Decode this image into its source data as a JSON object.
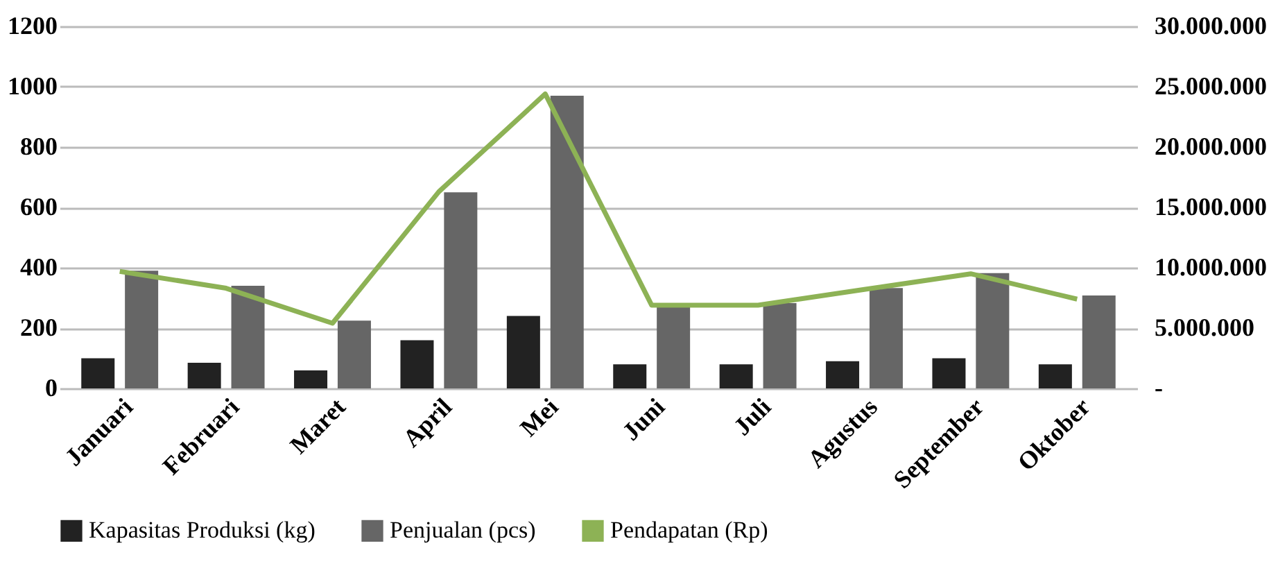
{
  "chart_data": {
    "type": "bar",
    "categories": [
      "Januari",
      "Februari",
      "Maret",
      "April",
      "Mei",
      "Juni",
      "Juli",
      "Agustus",
      "September",
      "Oktober"
    ],
    "series": [
      {
        "name": "Kapasitas Produksi (kg)",
        "color": "#222222",
        "values": [
          100,
          85,
          60,
          160,
          240,
          80,
          80,
          90,
          100,
          80
        ]
      },
      {
        "name": "Penjualan (pcs)",
        "color": "#666666",
        "values": [
          390,
          340,
          225,
          650,
          970,
          275,
          283,
          333,
          382,
          308
        ]
      },
      {
        "name": "Pendapatan (Rp)",
        "type": "line",
        "axis": "y2",
        "color": "#8db255",
        "values": [
          9700000,
          8300000,
          5400000,
          16300000,
          24400000,
          6900000,
          6900000,
          8200000,
          9500000,
          7400000
        ]
      }
    ],
    "ylim": [
      0,
      1200
    ],
    "yticks": [
      0,
      200,
      400,
      600,
      800,
      1000,
      1200
    ],
    "y2lim": [
      0,
      30000000
    ],
    "y2ticks": [
      {
        "value": 0,
        "label": "-"
      },
      {
        "value": 5000000,
        "label": "5.000.000"
      },
      {
        "value": 10000000,
        "label": "10.000.000"
      },
      {
        "value": 15000000,
        "label": "15.000.000"
      },
      {
        "value": 20000000,
        "label": "20.000.000"
      },
      {
        "value": 25000000,
        "label": "25.000.000"
      },
      {
        "value": 30000000,
        "label": "30.000.000"
      }
    ],
    "grid": "y",
    "legend": "bottom",
    "marker": "none"
  }
}
